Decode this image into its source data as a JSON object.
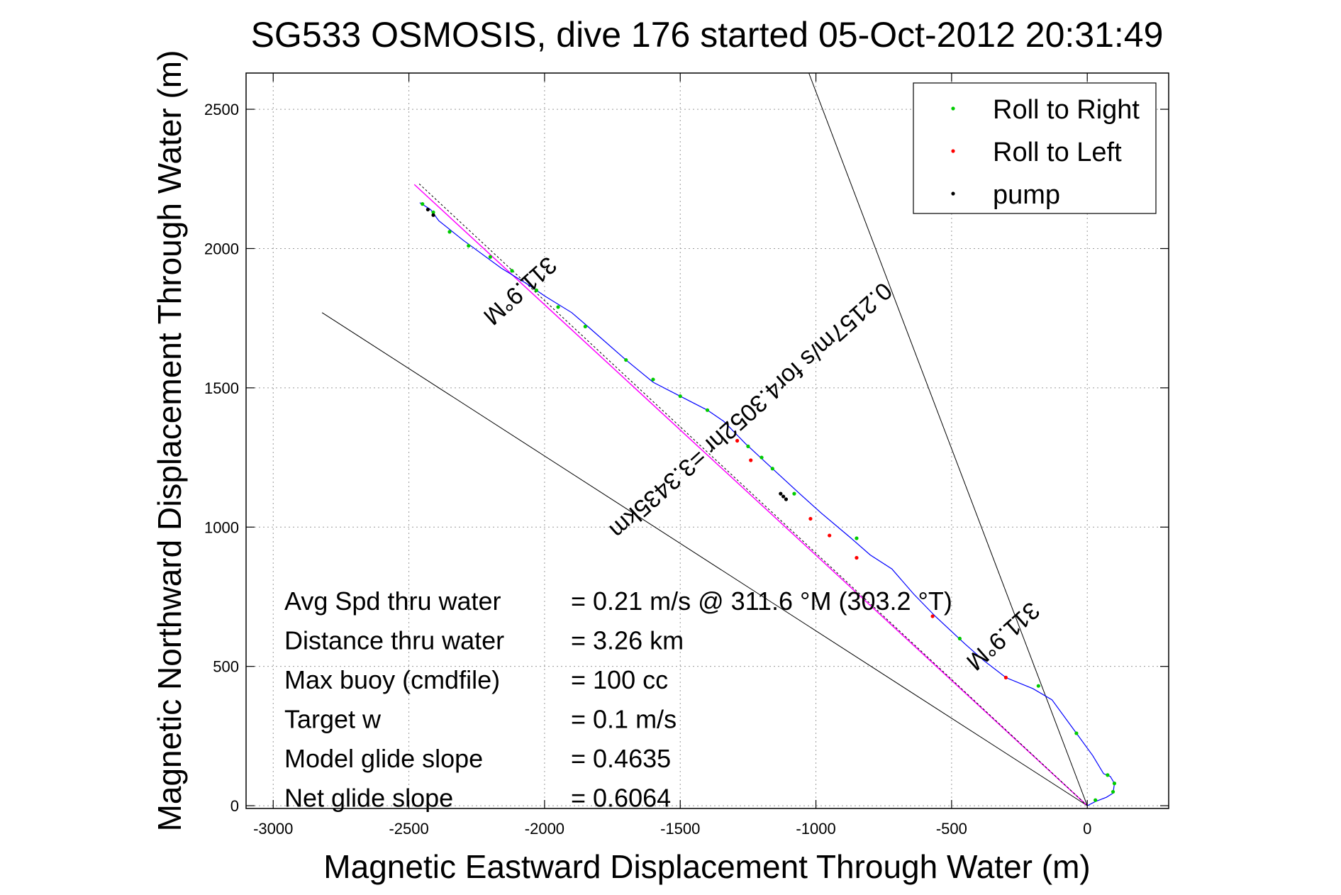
{
  "chart_data": {
    "type": "scatter",
    "title": "SG533 OSMOSIS, dive 176 started 05-Oct-2012 20:31:49",
    "xlabel": "Magnetic Eastward Displacement Through Water (m)",
    "ylabel": "Magnetic Northward Displacement Through Water (m)",
    "xlim": [
      -3100,
      300
    ],
    "ylim": [
      -10,
      2630
    ],
    "xticks": [
      -3000,
      -2500,
      -2000,
      -1500,
      -1000,
      -500,
      0
    ],
    "yticks": [
      0,
      500,
      1000,
      1500,
      2000,
      2500
    ],
    "grid": true,
    "legend_position": "top-right",
    "legend": [
      {
        "label": "Roll to Right",
        "color": "#00cc00"
      },
      {
        "label": "Roll to Left",
        "color": "#ff0000"
      },
      {
        "label": "pump",
        "color": "#000000"
      }
    ],
    "track_color": "#0000ff",
    "model_line_color": "#ff00ff",
    "track": [
      [
        0,
        0
      ],
      [
        30,
        15
      ],
      [
        70,
        30
      ],
      [
        95,
        45
      ],
      [
        100,
        80
      ],
      [
        85,
        105
      ],
      [
        60,
        115
      ],
      [
        20,
        180
      ],
      [
        -40,
        260
      ],
      [
        -130,
        380
      ],
      [
        -200,
        420
      ],
      [
        -300,
        460
      ],
      [
        -380,
        520
      ],
      [
        -450,
        580
      ],
      [
        -560,
        680
      ],
      [
        -640,
        760
      ],
      [
        -720,
        850
      ],
      [
        -800,
        900
      ],
      [
        -870,
        960
      ],
      [
        -980,
        1050
      ],
      [
        -1060,
        1120
      ],
      [
        -1160,
        1210
      ],
      [
        -1260,
        1300
      ],
      [
        -1340,
        1380
      ],
      [
        -1400,
        1420
      ],
      [
        -1500,
        1470
      ],
      [
        -1600,
        1520
      ],
      [
        -1700,
        1600
      ],
      [
        -1840,
        1720
      ],
      [
        -1900,
        1770
      ],
      [
        -2000,
        1830
      ],
      [
        -2060,
        1870
      ],
      [
        -2160,
        1930
      ],
      [
        -2300,
        2030
      ],
      [
        -2390,
        2100
      ],
      [
        -2420,
        2140
      ],
      [
        -2460,
        2165
      ]
    ],
    "roll_right": [
      [
        95,
        50
      ],
      [
        100,
        80
      ],
      [
        75,
        110
      ],
      [
        30,
        20
      ],
      [
        -40,
        260
      ],
      [
        -180,
        430
      ],
      [
        -470,
        600
      ],
      [
        -850,
        960
      ],
      [
        -1080,
        1120
      ],
      [
        -1160,
        1210
      ],
      [
        -1200,
        1250
      ],
      [
        -1250,
        1290
      ],
      [
        -1400,
        1420
      ],
      [
        -1500,
        1470
      ],
      [
        -1600,
        1530
      ],
      [
        -1700,
        1600
      ],
      [
        -1850,
        1720
      ],
      [
        -1950,
        1790
      ],
      [
        -2030,
        1850
      ],
      [
        -2120,
        1920
      ],
      [
        -2200,
        1970
      ],
      [
        -2280,
        2010
      ],
      [
        -2350,
        2060
      ],
      [
        -2410,
        2130
      ],
      [
        -2450,
        2160
      ]
    ],
    "roll_left": [
      [
        -300,
        460
      ],
      [
        -570,
        680
      ],
      [
        -850,
        890
      ],
      [
        -950,
        970
      ],
      [
        -1020,
        1030
      ],
      [
        -1240,
        1240
      ],
      [
        -1290,
        1310
      ]
    ],
    "pump": [
      [
        -1110,
        1100
      ],
      [
        -1120,
        1110
      ],
      [
        -1130,
        1120
      ],
      [
        -2410,
        2120
      ],
      [
        -2430,
        2140
      ]
    ],
    "heading_lines": [
      {
        "from": [
          0,
          0
        ],
        "to": [
          -1030,
          2640
        ]
      },
      {
        "from": [
          0,
          0
        ],
        "to": [
          -2820,
          1770
        ]
      }
    ],
    "model_line": {
      "from": [
        0,
        0
      ],
      "to": [
        -2480,
        2230
      ]
    },
    "annotations": [
      {
        "text": "311.9°M",
        "at": [
          -2110,
          1870
        ],
        "angle": -138.1
      },
      {
        "text": "0.2157m/s for4.3052hr =3.3435km",
        "at": [
          -1260,
          1440
        ],
        "angle": -138.1
      },
      {
        "text": "311.9°M",
        "at": [
          -330,
          630
        ],
        "angle": -138.1
      }
    ],
    "stats": [
      {
        "label": "Avg Spd thru water",
        "value": "=  0.21 m/s @ 311.6 °M (303.2 °T)"
      },
      {
        "label": "Distance thru water",
        "value": "=  3.26 km"
      },
      {
        "label": "Max buoy (cmdfile)",
        "value": "= 100 cc"
      },
      {
        "label": "Target w",
        "value": "= 0.1 m/s"
      },
      {
        "label": "Model glide slope",
        "value": "= 0.4635"
      },
      {
        "label": "Net glide slope",
        "value": "= 0.6064"
      }
    ]
  }
}
